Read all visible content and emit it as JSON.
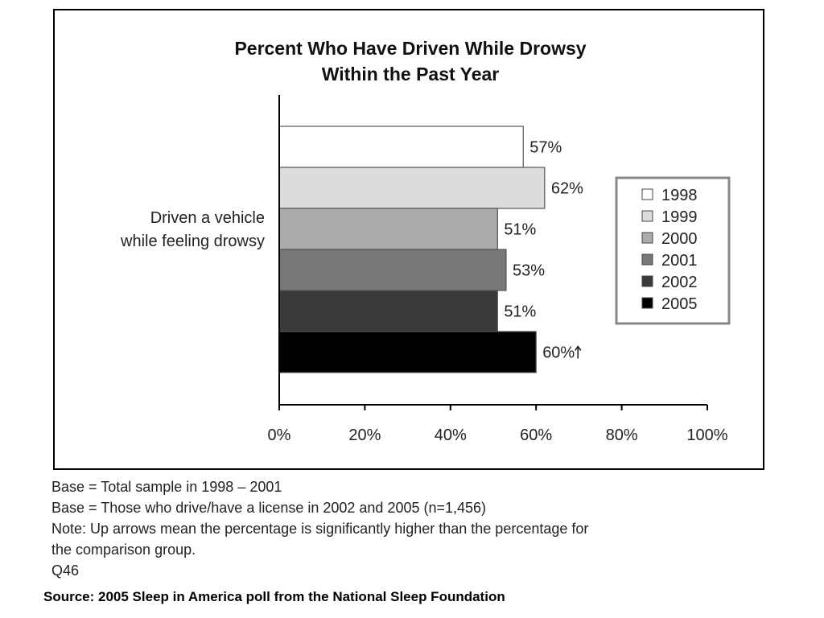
{
  "chart_data": {
    "type": "bar",
    "orientation": "horizontal",
    "title": [
      "Percent Who Have Driven While Drowsy",
      "Within the Past Year"
    ],
    "category_label": [
      "Driven a vehicle",
      "while feeling drowsy"
    ],
    "xlim": [
      0,
      100
    ],
    "x_ticks": [
      "0%",
      "20%",
      "40%",
      "60%",
      "80%",
      "100%"
    ],
    "grid": false,
    "legend_placement": "right",
    "series": [
      {
        "name": "1998",
        "value": 57,
        "label": "57%",
        "color": "#ffffff"
      },
      {
        "name": "1999",
        "value": 62,
        "label": "62%",
        "color": "#dcdcdc"
      },
      {
        "name": "2000",
        "value": 51,
        "label": "51%",
        "color": "#ababab"
      },
      {
        "name": "2001",
        "value": 53,
        "label": "53%",
        "color": "#777777"
      },
      {
        "name": "2002",
        "value": 51,
        "label": "51%",
        "color": "#3a3a3a"
      },
      {
        "name": "2005",
        "value": 60,
        "label": "60%",
        "color": "#000000",
        "up_arrow": true
      }
    ]
  },
  "notes": [
    "Base = Total sample in 1998 – 2001",
    "Base = Those who drive/have a license in 2002 and 2005 (n=1,456)",
    "Note:  Up arrows mean the percentage is significantly higher than the percentage for",
    "the comparison group.",
    "Q46"
  ],
  "source": "Source: 2005 Sleep in America poll from the National Sleep Foundation"
}
